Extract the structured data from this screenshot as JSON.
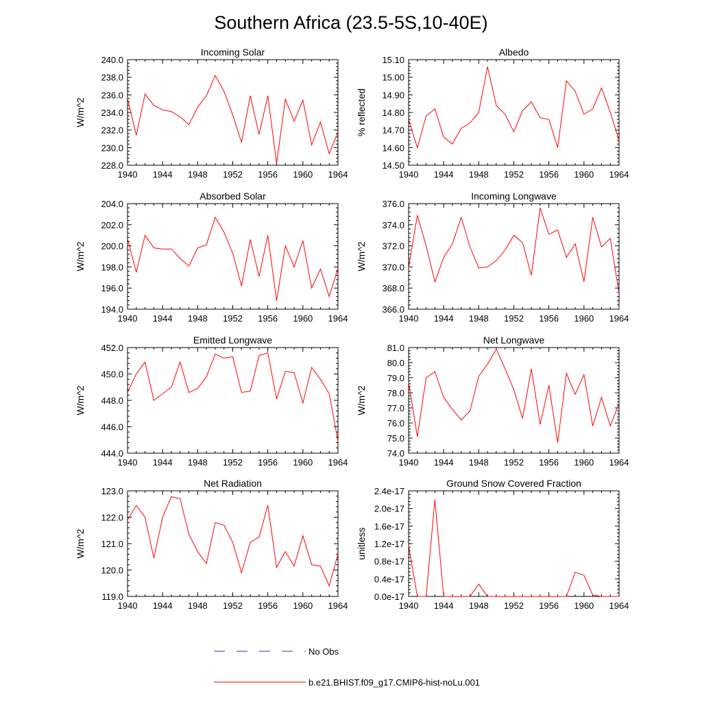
{
  "page_title": "Southern Africa (23.5-5S,10-40E)",
  "colors": {
    "model": "#ff0000",
    "obs": "#3333aa",
    "frame": "#000000"
  },
  "legend": {
    "obs_label": "No Obs",
    "model_label": "b.e21.BHIST.f09_g17.CMIP6-hist-noLu.001"
  },
  "chart_data": [
    {
      "type": "line",
      "title": "Incoming Solar",
      "xlabel": "",
      "ylabel": "W/m^2",
      "xlim": [
        1940,
        1964
      ],
      "ylim": [
        228,
        240
      ],
      "xticks": [
        "1940",
        "1944",
        "1948",
        "1952",
        "1956",
        "1960",
        "1964"
      ],
      "yticks": [
        "228.0",
        "230.0",
        "232.0",
        "234.0",
        "236.0",
        "238.0",
        "240.0"
      ],
      "x": [
        1940,
        1941,
        1942,
        1943,
        1944,
        1945,
        1946,
        1947,
        1948,
        1949,
        1950,
        1951,
        1952,
        1953,
        1954,
        1955,
        1956,
        1957,
        1958,
        1959,
        1960,
        1961,
        1962,
        1963,
        1964
      ],
      "series": [
        {
          "name": "b.e21.BHIST.f09_g17.CMIP6-hist-noLu.001",
          "values": [
            235.6,
            231.4,
            236.1,
            234.8,
            234.3,
            234.1,
            233.5,
            232.6,
            234.6,
            235.9,
            238.2,
            236.4,
            233.7,
            230.6,
            235.9,
            231.5,
            235.9,
            228.2,
            235.5,
            233.0,
            235.4,
            230.3,
            232.9,
            229.3,
            231.8
          ]
        }
      ]
    },
    {
      "type": "line",
      "title": "Albedo",
      "xlabel": "",
      "ylabel": "% reflected",
      "xlim": [
        1940,
        1964
      ],
      "ylim": [
        14.5,
        15.1
      ],
      "xticks": [
        "1940",
        "1944",
        "1948",
        "1952",
        "1956",
        "1960",
        "1964"
      ],
      "yticks": [
        "14.50",
        "14.60",
        "14.70",
        "14.80",
        "14.90",
        "15.00",
        "15.10"
      ],
      "x": [
        1940,
        1941,
        1942,
        1943,
        1944,
        1945,
        1946,
        1947,
        1948,
        1949,
        1950,
        1951,
        1952,
        1953,
        1954,
        1955,
        1956,
        1957,
        1958,
        1959,
        1960,
        1961,
        1962,
        1963,
        1964
      ],
      "series": [
        {
          "name": "b.e21.BHIST.f09_g17.CMIP6-hist-noLu.001",
          "values": [
            14.76,
            14.6,
            14.78,
            14.82,
            14.66,
            14.62,
            14.71,
            14.74,
            14.8,
            15.06,
            14.84,
            14.79,
            14.69,
            14.81,
            14.86,
            14.77,
            14.76,
            14.6,
            14.98,
            14.92,
            14.79,
            14.82,
            14.94,
            14.8,
            14.64
          ]
        }
      ]
    },
    {
      "type": "line",
      "title": "Absorbed Solar",
      "xlabel": "",
      "ylabel": "W/m^2",
      "xlim": [
        1940,
        1964
      ],
      "ylim": [
        194,
        204
      ],
      "xticks": [
        "1940",
        "1944",
        "1948",
        "1952",
        "1956",
        "1960",
        "1964"
      ],
      "yticks": [
        "194.0",
        "196.0",
        "198.0",
        "200.0",
        "202.0",
        "204.0"
      ],
      "x": [
        1940,
        1941,
        1942,
        1943,
        1944,
        1945,
        1946,
        1947,
        1948,
        1949,
        1950,
        1951,
        1952,
        1953,
        1954,
        1955,
        1956,
        1957,
        1958,
        1959,
        1960,
        1961,
        1962,
        1963,
        1964
      ],
      "series": [
        {
          "name": "b.e21.BHIST.f09_g17.CMIP6-hist-noLu.001",
          "values": [
            200.7,
            197.5,
            201.0,
            199.8,
            199.7,
            199.7,
            198.8,
            198.1,
            199.8,
            200.1,
            202.7,
            201.3,
            199.3,
            196.2,
            200.6,
            197.1,
            201.0,
            194.8,
            200.0,
            198.0,
            200.5,
            196.0,
            197.8,
            195.2,
            197.9
          ]
        }
      ]
    },
    {
      "type": "line",
      "title": "Incoming Longwave",
      "xlabel": "",
      "ylabel": "W/m^2",
      "xlim": [
        1940,
        1964
      ],
      "ylim": [
        366,
        376
      ],
      "xticks": [
        "1940",
        "1944",
        "1948",
        "1952",
        "1956",
        "1960",
        "1964"
      ],
      "yticks": [
        "366.0",
        "368.0",
        "370.0",
        "372.0",
        "374.0",
        "376.0"
      ],
      "x": [
        1940,
        1941,
        1942,
        1943,
        1944,
        1945,
        1946,
        1947,
        1948,
        1949,
        1950,
        1951,
        1952,
        1953,
        1954,
        1955,
        1956,
        1957,
        1958,
        1959,
        1960,
        1961,
        1962,
        1963,
        1964
      ],
      "series": [
        {
          "name": "b.e21.BHIST.f09_g17.CMIP6-hist-noLu.001",
          "values": [
            369.9,
            374.9,
            372.0,
            368.6,
            370.9,
            372.2,
            374.7,
            371.9,
            369.9,
            370.0,
            370.6,
            371.6,
            373.0,
            372.3,
            369.2,
            375.6,
            373.1,
            373.5,
            370.9,
            372.2,
            368.6,
            374.7,
            371.9,
            372.7,
            367.5
          ]
        }
      ]
    },
    {
      "type": "line",
      "title": "Emitted Longwave",
      "xlabel": "",
      "ylabel": "W/m^2",
      "xlim": [
        1940,
        1964
      ],
      "ylim": [
        444,
        452
      ],
      "xticks": [
        "1940",
        "1944",
        "1948",
        "1952",
        "1956",
        "1960",
        "1964"
      ],
      "yticks": [
        "444.0",
        "446.0",
        "448.0",
        "450.0",
        "452.0"
      ],
      "x": [
        1940,
        1941,
        1942,
        1943,
        1944,
        1945,
        1946,
        1947,
        1948,
        1949,
        1950,
        1951,
        1952,
        1953,
        1954,
        1955,
        1956,
        1957,
        1958,
        1959,
        1960,
        1961,
        1962,
        1963,
        1964
      ],
      "series": [
        {
          "name": "b.e21.BHIST.f09_g17.CMIP6-hist-noLu.001",
          "values": [
            448.6,
            450.0,
            450.9,
            448.0,
            448.5,
            449.0,
            450.9,
            448.6,
            448.9,
            449.8,
            451.5,
            451.2,
            451.3,
            448.6,
            448.7,
            451.4,
            451.6,
            448.1,
            450.2,
            450.1,
            447.8,
            450.5,
            449.6,
            448.5,
            444.9
          ]
        }
      ]
    },
    {
      "type": "line",
      "title": "Net Longwave",
      "xlabel": "",
      "ylabel": "W/m^2",
      "xlim": [
        1940,
        1964
      ],
      "ylim": [
        74,
        81
      ],
      "xticks": [
        "1940",
        "1944",
        "1948",
        "1952",
        "1956",
        "1960",
        "1964"
      ],
      "yticks": [
        "74.0",
        "75.0",
        "76.0",
        "77.0",
        "78.0",
        "79.0",
        "80.0",
        "81.0"
      ],
      "x": [
        1940,
        1941,
        1942,
        1943,
        1944,
        1945,
        1946,
        1947,
        1948,
        1949,
        1950,
        1951,
        1952,
        1953,
        1954,
        1955,
        1956,
        1957,
        1958,
        1959,
        1960,
        1961,
        1962,
        1963,
        1964
      ],
      "series": [
        {
          "name": "b.e21.BHIST.f09_g17.CMIP6-hist-noLu.001",
          "values": [
            78.7,
            75.1,
            79.0,
            79.4,
            77.7,
            76.9,
            76.2,
            76.8,
            79.1,
            79.9,
            80.9,
            79.6,
            78.2,
            76.3,
            79.6,
            75.9,
            78.5,
            74.7,
            79.3,
            77.9,
            79.2,
            75.8,
            77.7,
            75.8,
            77.3
          ]
        }
      ]
    },
    {
      "type": "line",
      "title": "Net Radiation",
      "xlabel": "",
      "ylabel": "W/m^2",
      "xlim": [
        1940,
        1964
      ],
      "ylim": [
        119,
        123
      ],
      "xticks": [
        "1940",
        "1944",
        "1948",
        "1952",
        "1956",
        "1960",
        "1964"
      ],
      "yticks": [
        "119.0",
        "120.0",
        "121.0",
        "122.0",
        "123.0"
      ],
      "x": [
        1940,
        1941,
        1942,
        1943,
        1944,
        1945,
        1946,
        1947,
        1948,
        1949,
        1950,
        1951,
        1952,
        1953,
        1954,
        1955,
        1956,
        1957,
        1958,
        1959,
        1960,
        1961,
        1962,
        1963,
        1964
      ],
      "series": [
        {
          "name": "b.e21.BHIST.f09_g17.CMIP6-hist-noLu.001",
          "values": [
            121.9,
            122.45,
            122.0,
            120.45,
            122.0,
            122.78,
            122.7,
            121.35,
            120.7,
            120.25,
            121.8,
            121.7,
            121.05,
            119.9,
            121.05,
            121.25,
            122.45,
            120.1,
            120.7,
            120.15,
            121.3,
            120.2,
            120.15,
            119.4,
            120.6
          ]
        }
      ]
    },
    {
      "type": "line",
      "title": "Ground Snow Covered Fraction",
      "xlabel": "",
      "ylabel": "unitless",
      "xlim": [
        1940,
        1964
      ],
      "ylim": [
        0,
        2.4e-17
      ],
      "xticks": [
        "1940",
        "1944",
        "1948",
        "1952",
        "1956",
        "1960",
        "1964"
      ],
      "yticks": [
        "0.0e-17",
        "0.4e-17",
        "0.8e-17",
        "1.2e-17",
        "1.6e-17",
        "2.0e-17",
        "2.4e-17"
      ],
      "x": [
        1940,
        1941,
        1942,
        1943,
        1944,
        1945,
        1946,
        1947,
        1948,
        1949,
        1950,
        1951,
        1952,
        1953,
        1954,
        1955,
        1956,
        1957,
        1958,
        1959,
        1960,
        1961,
        1962,
        1963,
        1964
      ],
      "series": [
        {
          "name": "b.e21.BHIST.f09_g17.CMIP6-hist-noLu.001",
          "values": [
            1.15e-17,
            0,
            0,
            2.2e-17,
            0,
            0,
            0,
            0,
            2.8e-18,
            0,
            0,
            0,
            0,
            0,
            0,
            0,
            0,
            0,
            0,
            5.5e-18,
            4.8e-18,
            3e-19,
            0,
            0,
            0
          ]
        }
      ]
    }
  ]
}
